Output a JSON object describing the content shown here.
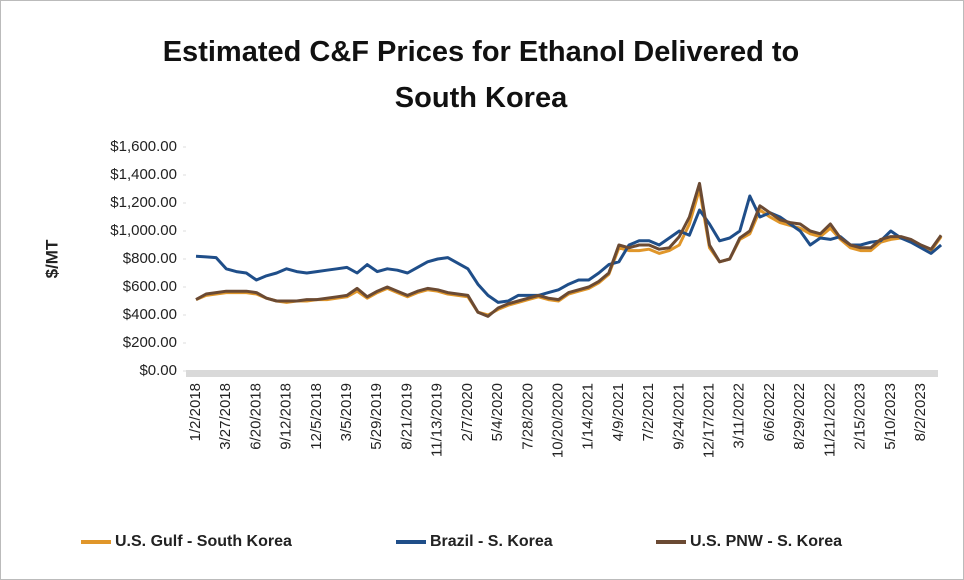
{
  "chart_data": {
    "type": "line",
    "title": "Estimated C&F Prices for Ethanol Delivered to South Korea",
    "y_label": "$/MT",
    "categories": [
      "1/2/2018",
      null,
      null,
      "3/27/2018",
      null,
      null,
      "6/20/2018",
      null,
      null,
      "9/12/2018",
      null,
      null,
      "12/5/2018",
      null,
      null,
      "3/5/2019",
      null,
      null,
      "5/29/2019",
      null,
      null,
      "8/21/2019",
      null,
      null,
      "11/13/2019",
      null,
      null,
      "2/7/2020",
      null,
      null,
      "5/4/2020",
      null,
      null,
      "7/28/2020",
      null,
      null,
      "10/20/2020",
      null,
      null,
      "1/14/2021",
      null,
      null,
      "4/9/2021",
      null,
      null,
      "7/2/2021",
      null,
      null,
      "9/24/2021",
      null,
      null,
      "12/17/2021",
      null,
      null,
      "3/11/2022",
      null,
      null,
      "6/6/2022",
      null,
      null,
      "8/29/2022",
      null,
      null,
      "11/21/2022",
      null,
      null,
      "2/15/2023",
      null,
      null,
      "5/10/2023",
      null,
      null,
      "8/2/2023",
      null,
      null
    ],
    "series": [
      {
        "name": "U.S. Gulf - South Korea",
        "color": "#e0962a",
        "values": [
          510,
          540,
          550,
          560,
          560,
          560,
          550,
          520,
          500,
          490,
          500,
          500,
          510,
          510,
          520,
          530,
          570,
          520,
          560,
          590,
          560,
          530,
          560,
          580,
          570,
          550,
          540,
          530,
          420,
          400,
          440,
          470,
          490,
          510,
          530,
          510,
          500,
          550,
          570,
          590,
          630,
          690,
          880,
          860,
          860,
          870,
          840,
          860,
          900,
          1050,
          1300,
          880,
          780,
          800,
          940,
          980,
          1150,
          1100,
          1060,
          1040,
          1020,
          980,
          960,
          1020,
          940,
          880,
          860,
          860,
          920,
          940,
          950,
          930,
          890,
          860,
          960
        ]
      },
      {
        "name": "Brazil - S. Korea",
        "color": "#1f4e89",
        "values": [
          820,
          815,
          810,
          730,
          710,
          700,
          650,
          680,
          700,
          730,
          710,
          700,
          710,
          720,
          730,
          740,
          700,
          760,
          710,
          730,
          720,
          700,
          740,
          780,
          800,
          810,
          770,
          730,
          620,
          540,
          490,
          500,
          540,
          540,
          540,
          560,
          580,
          620,
          650,
          650,
          700,
          760,
          780,
          900,
          930,
          930,
          900,
          950,
          1000,
          970,
          1150,
          1050,
          930,
          950,
          1000,
          1250,
          1100,
          1130,
          1100,
          1050,
          1000,
          900,
          950,
          940,
          960,
          900,
          900,
          920,
          930,
          1000,
          950,
          920,
          880,
          840,
          900
        ]
      },
      {
        "name": "U.S. PNW - S. Korea",
        "color": "#6b4a33",
        "values": [
          510,
          550,
          560,
          570,
          570,
          570,
          560,
          520,
          500,
          500,
          500,
          510,
          510,
          520,
          530,
          540,
          590,
          530,
          570,
          600,
          570,
          540,
          570,
          590,
          580,
          560,
          550,
          540,
          420,
          390,
          450,
          480,
          500,
          520,
          540,
          520,
          510,
          560,
          580,
          600,
          640,
          700,
          900,
          880,
          900,
          900,
          870,
          880,
          960,
          1100,
          1340,
          900,
          780,
          800,
          950,
          1000,
          1180,
          1130,
          1080,
          1060,
          1050,
          1000,
          980,
          1050,
          950,
          900,
          880,
          880,
          940,
          960,
          960,
          940,
          900,
          870,
          970
        ]
      }
    ],
    "ylim": [
      0,
      1600
    ],
    "yticks": [
      {
        "value": 0,
        "label": "$0.00"
      },
      {
        "value": 200,
        "label": "$200.00"
      },
      {
        "value": 400,
        "label": "$400.00"
      },
      {
        "value": 600,
        "label": "$600.00"
      },
      {
        "value": 800,
        "label": "$800.00"
      },
      {
        "value": 1000,
        "label": "$1,000.00"
      },
      {
        "value": 1200,
        "label": "$1,200.00"
      },
      {
        "value": 1400,
        "label": "$1,400.00"
      },
      {
        "value": 1600,
        "label": "$1,600.00"
      }
    ],
    "legend": "bottom"
  }
}
